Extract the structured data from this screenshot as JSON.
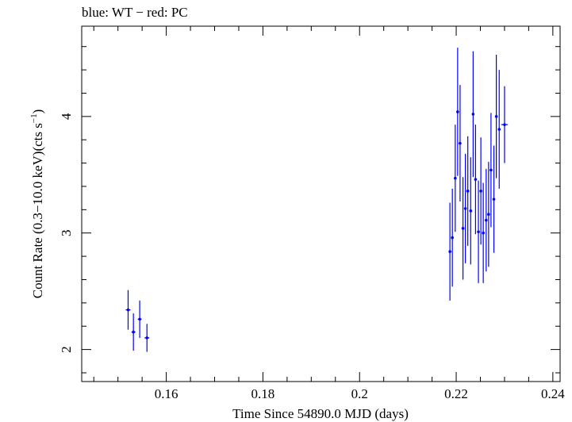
{
  "chart_data": {
    "type": "scatter",
    "title": "blue: WT − red: PC",
    "xlabel": "Time Since 54890.0 MJD (days)",
    "ylabel_main": "Count Rate (0.3−10.0 keV)(cts s",
    "ylabel_sup": "−1",
    "ylabel_close": ")",
    "xlim": [
      0.1425,
      0.2415
    ],
    "ylim": [
      1.725,
      4.775
    ],
    "x_ticks": [
      0.16,
      0.18,
      0.2,
      0.22,
      0.24
    ],
    "x_tick_labels": [
      "0.16",
      "0.18",
      "0.2",
      "0.22",
      "0.24"
    ],
    "y_ticks": [
      2,
      3,
      4
    ],
    "y_tick_labels": [
      "2",
      "3",
      "4"
    ],
    "grid": false,
    "series": [
      {
        "name": "WT",
        "color": "#0000ff",
        "points": [
          {
            "x": 0.1521,
            "xerr": 0.0005,
            "y": 2.34,
            "yerr": 0.17
          },
          {
            "x": 0.1532,
            "xerr": 0.0004,
            "y": 2.15,
            "yerr": 0.16
          },
          {
            "x": 0.1545,
            "xerr": 0.0004,
            "y": 2.26,
            "yerr": 0.16
          },
          {
            "x": 0.156,
            "xerr": 0.0005,
            "y": 2.1,
            "yerr": 0.12
          },
          {
            "x": 0.2187,
            "xerr": 0.0002,
            "y": 2.84,
            "yerr": 0.42
          },
          {
            "x": 0.2192,
            "xerr": 0.0002,
            "y": 2.96,
            "yerr": 0.42
          },
          {
            "x": 0.2198,
            "xerr": 0.0002,
            "y": 3.47,
            "yerr": 0.46
          },
          {
            "x": 0.2203,
            "xerr": 0.0002,
            "y": 4.04,
            "yerr": 0.55
          },
          {
            "x": 0.2208,
            "xerr": 0.0002,
            "y": 3.77,
            "yerr": 0.5
          },
          {
            "x": 0.2214,
            "xerr": 0.0002,
            "y": 3.04,
            "yerr": 0.44
          },
          {
            "x": 0.2219,
            "xerr": 0.0002,
            "y": 3.21,
            "yerr": 0.47
          },
          {
            "x": 0.2224,
            "xerr": 0.0002,
            "y": 3.36,
            "yerr": 0.47
          },
          {
            "x": 0.223,
            "xerr": 0.0002,
            "y": 3.19,
            "yerr": 0.46
          },
          {
            "x": 0.2235,
            "xerr": 0.0002,
            "y": 4.02,
            "yerr": 0.54
          },
          {
            "x": 0.224,
            "xerr": 0.0002,
            "y": 3.46,
            "yerr": 0.47
          },
          {
            "x": 0.2246,
            "xerr": 0.0002,
            "y": 3.01,
            "yerr": 0.44
          },
          {
            "x": 0.2251,
            "xerr": 0.0002,
            "y": 3.36,
            "yerr": 0.46
          },
          {
            "x": 0.2256,
            "xerr": 0.0002,
            "y": 3.0,
            "yerr": 0.43
          },
          {
            "x": 0.2262,
            "xerr": 0.0002,
            "y": 3.11,
            "yerr": 0.44
          },
          {
            "x": 0.2267,
            "xerr": 0.0002,
            "y": 3.16,
            "yerr": 0.45
          },
          {
            "x": 0.2272,
            "xerr": 0.0002,
            "y": 3.54,
            "yerr": 0.49
          },
          {
            "x": 0.2278,
            "xerr": 0.0002,
            "y": 3.29,
            "yerr": 0.46
          },
          {
            "x": 0.2283,
            "xerr": 0.0002,
            "y": 4.0,
            "yerr": 0.53
          },
          {
            "x": 0.2289,
            "xerr": 0.0003,
            "y": 3.89,
            "yerr": 0.51
          },
          {
            "x": 0.23,
            "xerr": 0.0007,
            "y": 3.93,
            "yerr": 0.33
          }
        ]
      }
    ]
  }
}
